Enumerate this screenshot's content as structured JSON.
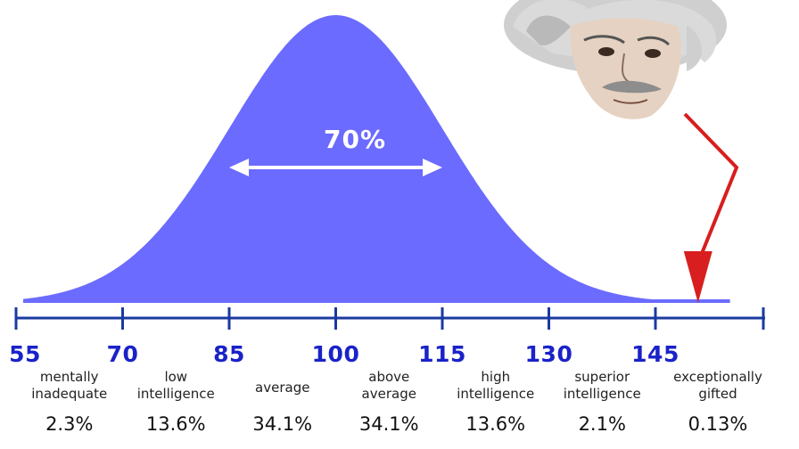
{
  "chart_data": {
    "type": "area",
    "title": "",
    "xlabel": "",
    "ylabel": "",
    "distribution": {
      "mean": 100,
      "sd": 15
    },
    "xlim": [
      55,
      155
    ],
    "ticks": [
      "55",
      "70",
      "85",
      "100",
      "115",
      "130",
      "145"
    ],
    "tick_values": [
      55,
      70,
      85,
      100,
      115,
      130,
      145
    ],
    "annotation": {
      "text": "70%",
      "from": 85,
      "to": 115
    },
    "categories": [
      {
        "line1": "mentally",
        "line2": "inadequate",
        "percent": "2.3%",
        "center": 62.5
      },
      {
        "line1": "low",
        "line2": "intelligence",
        "percent": "13.6%",
        "center": 77.5
      },
      {
        "line1": "",
        "line2": "average",
        "percent": "34.1%",
        "center": 92.5
      },
      {
        "line1": "above",
        "line2": "average",
        "percent": "34.1%",
        "center": 107.5
      },
      {
        "line1": "high",
        "line2": "intelligence",
        "percent": "13.6%",
        "center": 122.5
      },
      {
        "line1": "superior",
        "line2": "intelligence",
        "percent": "2.1%",
        "center": 137.5
      },
      {
        "line1": "exceptionally",
        "line2": "gifted",
        "percent": "0.13%",
        "center": 152
      }
    ],
    "marker_value": 152,
    "colors": {
      "curve": "#6b6bff",
      "axis": "#1a3aa0",
      "tick_text": "#1a22c8",
      "arrow": "#d81e1e",
      "annotation": "#ffffff"
    }
  },
  "image": {
    "name": "einstein-portrait"
  }
}
